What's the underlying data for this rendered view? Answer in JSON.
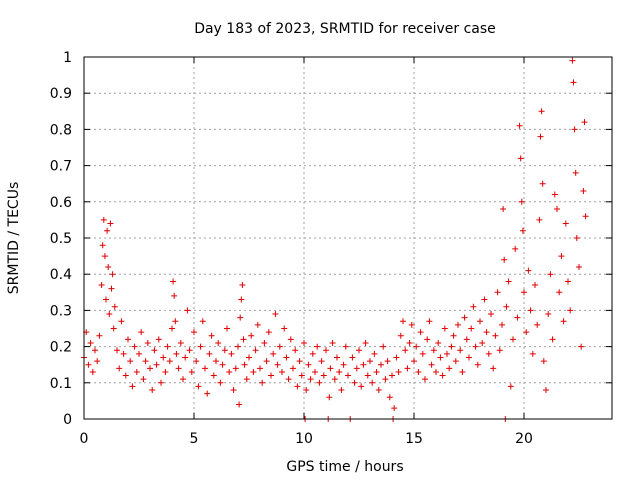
{
  "chart_data": {
    "type": "scatter",
    "title": "Day 183 of 2023, SRMTID for receiver case",
    "xlabel": "GPS time / hours",
    "ylabel": "SRMTID / TECUs",
    "xlim": [
      0,
      24
    ],
    "ylim": [
      0,
      1
    ],
    "x_ticks": [
      0,
      5,
      10,
      15,
      20
    ],
    "x_tick_labels": [
      "0",
      "5",
      "10",
      "15",
      "20"
    ],
    "y_ticks": [
      0,
      0.1,
      0.2,
      0.3,
      0.4,
      0.5,
      0.6,
      0.7,
      0.8,
      0.9,
      1
    ],
    "y_tick_labels": [
      "0",
      "0.1",
      "0.2",
      "0.3",
      "0.4",
      "0.5",
      "0.6",
      "0.7",
      "0.8",
      "0.9",
      "1"
    ],
    "grid": true,
    "marker": "plus",
    "color": "#e00000",
    "series": [
      {
        "name": "SRMTID",
        "points": [
          [
            0.0,
            0.17
          ],
          [
            0.1,
            0.24
          ],
          [
            0.2,
            0.15
          ],
          [
            0.3,
            0.21
          ],
          [
            0.4,
            0.13
          ],
          [
            0.5,
            0.19
          ],
          [
            0.6,
            0.16
          ],
          [
            0.7,
            0.23
          ],
          [
            0.8,
            0.37
          ],
          [
            0.85,
            0.48
          ],
          [
            0.9,
            0.55
          ],
          [
            0.95,
            0.45
          ],
          [
            1.0,
            0.33
          ],
          [
            1.05,
            0.52
          ],
          [
            1.1,
            0.42
          ],
          [
            1.15,
            0.29
          ],
          [
            1.2,
            0.54
          ],
          [
            1.25,
            0.36
          ],
          [
            1.3,
            0.4
          ],
          [
            1.35,
            0.25
          ],
          [
            1.4,
            0.31
          ],
          [
            1.5,
            0.19
          ],
          [
            1.6,
            0.14
          ],
          [
            1.7,
            0.27
          ],
          [
            1.8,
            0.18
          ],
          [
            1.9,
            0.12
          ],
          [
            2.0,
            0.22
          ],
          [
            2.1,
            0.16
          ],
          [
            2.2,
            0.09
          ],
          [
            2.3,
            0.2
          ],
          [
            2.4,
            0.13
          ],
          [
            2.5,
            0.18
          ],
          [
            2.6,
            0.24
          ],
          [
            2.7,
            0.11
          ],
          [
            2.8,
            0.16
          ],
          [
            2.9,
            0.21
          ],
          [
            3.0,
            0.14
          ],
          [
            3.1,
            0.08
          ],
          [
            3.2,
            0.19
          ],
          [
            3.3,
            0.15
          ],
          [
            3.4,
            0.22
          ],
          [
            3.5,
            0.1
          ],
          [
            3.6,
            0.17
          ],
          [
            3.7,
            0.13
          ],
          [
            3.8,
            0.2
          ],
          [
            3.9,
            0.16
          ],
          [
            4.0,
            0.25
          ],
          [
            4.05,
            0.38
          ],
          [
            4.1,
            0.34
          ],
          [
            4.15,
            0.27
          ],
          [
            4.2,
            0.18
          ],
          [
            4.3,
            0.14
          ],
          [
            4.4,
            0.21
          ],
          [
            4.5,
            0.11
          ],
          [
            4.6,
            0.17
          ],
          [
            4.7,
            0.3
          ],
          [
            4.8,
            0.19
          ],
          [
            4.9,
            0.13
          ],
          [
            5.0,
            0.24
          ],
          [
            5.1,
            0.16
          ],
          [
            5.2,
            0.09
          ],
          [
            5.3,
            0.2
          ],
          [
            5.4,
            0.27
          ],
          [
            5.5,
            0.14
          ],
          [
            5.6,
            0.07
          ],
          [
            5.7,
            0.18
          ],
          [
            5.8,
            0.23
          ],
          [
            5.9,
            0.12
          ],
          [
            6.0,
            0.16
          ],
          [
            6.1,
            0.21
          ],
          [
            6.2,
            0.1
          ],
          [
            6.3,
            0.15
          ],
          [
            6.4,
            0.19
          ],
          [
            6.5,
            0.25
          ],
          [
            6.6,
            0.13
          ],
          [
            6.7,
            0.18
          ],
          [
            6.8,
            0.08
          ],
          [
            6.9,
            0.14
          ],
          [
            7.0,
            0.2
          ],
          [
            7.05,
            0.04
          ],
          [
            7.1,
            0.28
          ],
          [
            7.15,
            0.33
          ],
          [
            7.2,
            0.37
          ],
          [
            7.25,
            0.22
          ],
          [
            7.3,
            0.15
          ],
          [
            7.4,
            0.11
          ],
          [
            7.5,
            0.17
          ],
          [
            7.6,
            0.23
          ],
          [
            7.7,
            0.13
          ],
          [
            7.8,
            0.19
          ],
          [
            7.9,
            0.26
          ],
          [
            8.0,
            0.14
          ],
          [
            8.1,
            0.1
          ],
          [
            8.2,
            0.21
          ],
          [
            8.3,
            0.16
          ],
          [
            8.4,
            0.24
          ],
          [
            8.5,
            0.12
          ],
          [
            8.6,
            0.18
          ],
          [
            8.7,
            0.29
          ],
          [
            8.8,
            0.15
          ],
          [
            8.9,
            0.2
          ],
          [
            9.0,
            0.13
          ],
          [
            9.1,
            0.25
          ],
          [
            9.2,
            0.17
          ],
          [
            9.3,
            0.11
          ],
          [
            9.4,
            0.22
          ],
          [
            9.5,
            0.14
          ],
          [
            9.6,
            0.19
          ],
          [
            9.7,
            0.09
          ],
          [
            9.8,
            0.16
          ],
          [
            9.9,
            0.12
          ],
          [
            10.0,
            0.21
          ],
          [
            10.05,
            0.0
          ],
          [
            10.1,
            0.08
          ],
          [
            10.2,
            0.15
          ],
          [
            10.3,
            0.11
          ],
          [
            10.4,
            0.18
          ],
          [
            10.5,
            0.13
          ],
          [
            10.6,
            0.2
          ],
          [
            10.7,
            0.1
          ],
          [
            10.8,
            0.16
          ],
          [
            10.9,
            0.12
          ],
          [
            11.0,
            0.19
          ],
          [
            11.1,
            0.0
          ],
          [
            11.15,
            0.06
          ],
          [
            11.2,
            0.14
          ],
          [
            11.3,
            0.21
          ],
          [
            11.4,
            0.11
          ],
          [
            11.5,
            0.17
          ],
          [
            11.6,
            0.13
          ],
          [
            11.7,
            0.08
          ],
          [
            11.8,
            0.15
          ],
          [
            11.9,
            0.2
          ],
          [
            12.0,
            0.12
          ],
          [
            12.1,
            0.0
          ],
          [
            12.2,
            0.17
          ],
          [
            12.3,
            0.1
          ],
          [
            12.4,
            0.14
          ],
          [
            12.5,
            0.19
          ],
          [
            12.6,
            0.09
          ],
          [
            12.7,
            0.15
          ],
          [
            12.8,
            0.21
          ],
          [
            12.9,
            0.12
          ],
          [
            13.0,
            0.16
          ],
          [
            13.1,
            0.1
          ],
          [
            13.2,
            0.18
          ],
          [
            13.3,
            0.13
          ],
          [
            13.4,
            0.08
          ],
          [
            13.5,
            0.15
          ],
          [
            13.6,
            0.2
          ],
          [
            13.7,
            0.11
          ],
          [
            13.8,
            0.16
          ],
          [
            13.9,
            0.06
          ],
          [
            14.0,
            0.12
          ],
          [
            14.05,
            0.0
          ],
          [
            14.1,
            0.03
          ],
          [
            14.2,
            0.17
          ],
          [
            14.3,
            0.13
          ],
          [
            14.4,
            0.23
          ],
          [
            14.5,
            0.27
          ],
          [
            14.6,
            0.19
          ],
          [
            14.7,
            0.14
          ],
          [
            14.8,
            0.21
          ],
          [
            14.9,
            0.26
          ],
          [
            15.0,
            0.16
          ],
          [
            15.1,
            0.2
          ],
          [
            15.2,
            0.13
          ],
          [
            15.3,
            0.24
          ],
          [
            15.4,
            0.18
          ],
          [
            15.5,
            0.11
          ],
          [
            15.6,
            0.22
          ],
          [
            15.7,
            0.27
          ],
          [
            15.8,
            0.15
          ],
          [
            15.9,
            0.19
          ],
          [
            16.0,
            0.13
          ],
          [
            16.1,
            0.21
          ],
          [
            16.2,
            0.17
          ],
          [
            16.3,
            0.12
          ],
          [
            16.4,
            0.25
          ],
          [
            16.5,
            0.18
          ],
          [
            16.6,
            0.14
          ],
          [
            16.7,
            0.2
          ],
          [
            16.8,
            0.23
          ],
          [
            16.9,
            0.16
          ],
          [
            17.0,
            0.26
          ],
          [
            17.1,
            0.19
          ],
          [
            17.2,
            0.13
          ],
          [
            17.3,
            0.28
          ],
          [
            17.4,
            0.22
          ],
          [
            17.5,
            0.17
          ],
          [
            17.6,
            0.25
          ],
          [
            17.7,
            0.31
          ],
          [
            17.8,
            0.2
          ],
          [
            17.9,
            0.15
          ],
          [
            18.0,
            0.27
          ],
          [
            18.1,
            0.21
          ],
          [
            18.2,
            0.33
          ],
          [
            18.3,
            0.24
          ],
          [
            18.4,
            0.18
          ],
          [
            18.5,
            0.29
          ],
          [
            18.6,
            0.14
          ],
          [
            18.7,
            0.23
          ],
          [
            18.8,
            0.35
          ],
          [
            18.9,
            0.19
          ],
          [
            19.0,
            0.26
          ],
          [
            19.05,
            0.58
          ],
          [
            19.1,
            0.44
          ],
          [
            19.15,
            0.0
          ],
          [
            19.2,
            0.31
          ],
          [
            19.3,
            0.38
          ],
          [
            19.4,
            0.09
          ],
          [
            19.5,
            0.22
          ],
          [
            19.6,
            0.47
          ],
          [
            19.7,
            0.28
          ],
          [
            19.8,
            0.81
          ],
          [
            19.85,
            0.72
          ],
          [
            19.9,
            0.6
          ],
          [
            19.95,
            0.52
          ],
          [
            20.0,
            0.35
          ],
          [
            20.1,
            0.24
          ],
          [
            20.2,
            0.41
          ],
          [
            20.3,
            0.3
          ],
          [
            20.4,
            0.18
          ],
          [
            20.5,
            0.37
          ],
          [
            20.6,
            0.26
          ],
          [
            20.7,
            0.55
          ],
          [
            20.75,
            0.78
          ],
          [
            20.8,
            0.85
          ],
          [
            20.85,
            0.65
          ],
          [
            20.9,
            0.16
          ],
          [
            21.0,
            0.08
          ],
          [
            21.1,
            0.29
          ],
          [
            21.2,
            0.4
          ],
          [
            21.3,
            0.22
          ],
          [
            21.4,
            0.62
          ],
          [
            21.5,
            0.58
          ],
          [
            21.6,
            0.35
          ],
          [
            21.7,
            0.45
          ],
          [
            21.8,
            0.27
          ],
          [
            21.9,
            0.54
          ],
          [
            22.0,
            0.38
          ],
          [
            22.1,
            0.3
          ],
          [
            22.2,
            0.99
          ],
          [
            22.25,
            0.93
          ],
          [
            22.3,
            0.8
          ],
          [
            22.35,
            0.68
          ],
          [
            22.4,
            0.5
          ],
          [
            22.5,
            0.42
          ],
          [
            22.6,
            0.2
          ],
          [
            22.7,
            0.63
          ],
          [
            22.75,
            0.82
          ],
          [
            22.8,
            0.56
          ]
        ]
      }
    ]
  }
}
